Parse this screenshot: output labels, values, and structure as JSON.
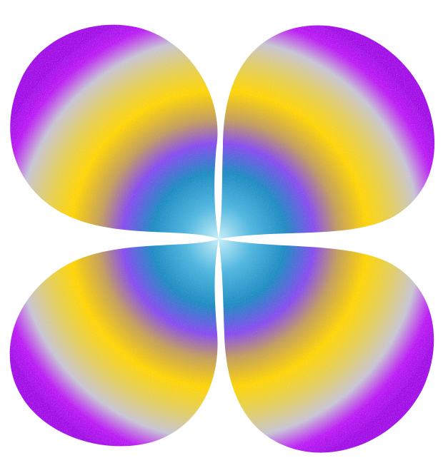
{
  "image": {
    "background": "#ffffff",
    "subject": "four-petal-flower",
    "petal_count": 4,
    "gradient_colors": {
      "center": "#c8f0fa",
      "inner": "#1e8ec4",
      "ring": "#8a4ff0",
      "band": "#ffd600",
      "outer": "#c9c6d6",
      "rim": "#bd1cf5"
    },
    "texture": "grainy-noise"
  }
}
